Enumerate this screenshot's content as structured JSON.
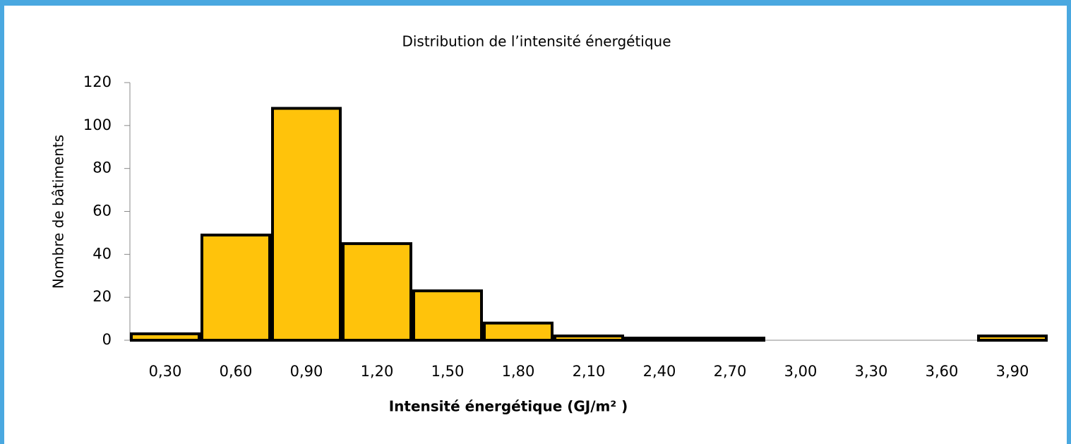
{
  "chart_data": {
    "type": "bar",
    "title": "Distribution de l’intensité énergétique",
    "x_label": "Intensité énergétique (GJ/m² )",
    "y_label": "Nombre de bâtiments",
    "categories": [
      "0,30",
      "0,60",
      "0,90",
      "1,20",
      "1,50",
      "1,80",
      "2,10",
      "2,40",
      "2,70",
      "3,00",
      "3,30",
      "3,60",
      "3,90"
    ],
    "values": [
      3,
      49,
      108,
      45,
      23,
      8,
      2,
      1,
      1,
      0,
      0,
      0,
      2
    ],
    "color": "#ffc30b",
    "ylim": [
      0,
      120
    ],
    "yticks": [
      0,
      20,
      40,
      60,
      80,
      100,
      120
    ],
    "grid": false
  }
}
